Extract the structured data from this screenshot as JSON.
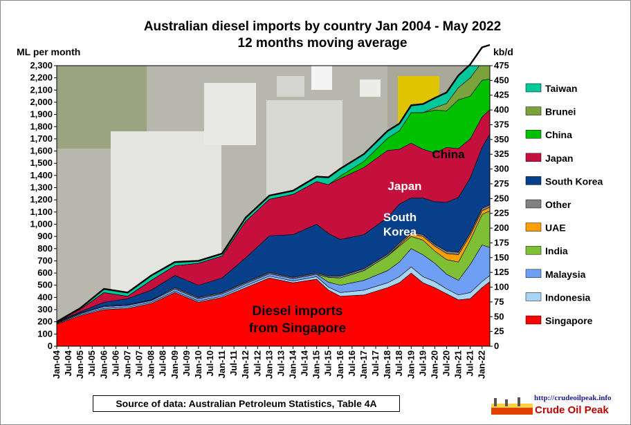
{
  "chart_data": {
    "type": "area",
    "title": "Australian diesel imports by country Jan 2004 - May 2022",
    "subtitle": "12 months moving average",
    "ylabel_left": "ML per month",
    "ylabel_right": "kb/d",
    "ylim": [
      0,
      2300
    ],
    "y2lim": [
      0,
      475
    ],
    "y_ticks": [
      "0",
      "100",
      "200",
      "300",
      "400",
      "500",
      "600",
      "700",
      "800",
      "900",
      "1,000",
      "1,100",
      "1,200",
      "1,300",
      "1,400",
      "1,500",
      "1,600",
      "1,700",
      "1,800",
      "1,900",
      "2,000",
      "2,100",
      "2,200",
      "2,300"
    ],
    "y2_ticks": [
      "0",
      "25",
      "50",
      "75",
      "100",
      "125",
      "150",
      "175",
      "200",
      "225",
      "250",
      "275",
      "300",
      "325",
      "350",
      "375",
      "400",
      "425",
      "450",
      "475"
    ],
    "x_ticks": [
      "Jan-04",
      "Jul-04",
      "Jan-05",
      "Jul-05",
      "Jan-06",
      "Jul-06",
      "Jan-07",
      "Jul-07",
      "Jan-08",
      "Jul-08",
      "Jan-09",
      "Jul-09",
      "Jan-10",
      "Jul-10",
      "Jan-11",
      "Jul-11",
      "Jan-12",
      "Jul-12",
      "Jan-13",
      "Jul-13",
      "Jan-14",
      "Jul-14",
      "Jan-15",
      "Jul-15",
      "Jan-16",
      "Jul-16",
      "Jan-17",
      "Jul-17",
      "Jan-18",
      "Jul-18",
      "Jan-19",
      "Jul-19",
      "Jan-20",
      "Jul-20",
      "Jan-21",
      "Jul-21",
      "Jan-22"
    ],
    "x_start": "2004-01",
    "x_end": "2022-05",
    "legend_position": "right",
    "x": [
      2004.0,
      2005.0,
      2006.0,
      2007.0,
      2008.0,
      2009.0,
      2010.0,
      2011.0,
      2012.0,
      2013.0,
      2014.0,
      2015.0,
      2015.5,
      2016.0,
      2017.0,
      2018.0,
      2018.5,
      2019.0,
      2019.5,
      2020.0,
      2020.5,
      2021.0,
      2021.5,
      2022.0,
      2022.33
    ],
    "series": [
      {
        "name": "Singapore",
        "color": "#ff0000",
        "values": [
          180,
          250,
          300,
          310,
          350,
          440,
          360,
          400,
          480,
          560,
          520,
          550,
          460,
          410,
          420,
          480,
          520,
          600,
          520,
          480,
          430,
          380,
          390,
          480,
          530
        ]
      },
      {
        "name": "Indonesia",
        "color": "#a8d4f4",
        "values": [
          5,
          8,
          10,
          10,
          10,
          10,
          10,
          10,
          15,
          15,
          15,
          20,
          25,
          30,
          40,
          40,
          50,
          50,
          50,
          50,
          40,
          40,
          50,
          50,
          50
        ]
      },
      {
        "name": "Malaysia",
        "color": "#6f9ff5",
        "values": [
          5,
          10,
          15,
          15,
          15,
          20,
          20,
          20,
          20,
          20,
          20,
          20,
          40,
          60,
          80,
          100,
          120,
          150,
          180,
          150,
          120,
          120,
          230,
          300,
          230
        ]
      },
      {
        "name": "India",
        "color": "#7fbf35",
        "values": [
          0,
          0,
          0,
          0,
          0,
          0,
          0,
          0,
          0,
          0,
          0,
          0,
          40,
          60,
          80,
          120,
          130,
          100,
          120,
          100,
          120,
          150,
          200,
          250,
          300
        ]
      },
      {
        "name": "UAE",
        "color": "#ffa000",
        "values": [
          0,
          0,
          0,
          0,
          0,
          0,
          0,
          0,
          0,
          0,
          0,
          0,
          0,
          0,
          0,
          0,
          10,
          20,
          30,
          40,
          50,
          60,
          40,
          30,
          30
        ]
      },
      {
        "name": "Other",
        "color": "#808080",
        "values": [
          5,
          5,
          5,
          5,
          5,
          10,
          10,
          10,
          10,
          10,
          10,
          10,
          10,
          15,
          15,
          15,
          15,
          15,
          15,
          15,
          20,
          20,
          20,
          20,
          20
        ]
      },
      {
        "name": "South Korea",
        "color": "#073f8a",
        "values": [
          5,
          10,
          30,
          50,
          80,
          100,
          100,
          120,
          200,
          300,
          350,
          400,
          350,
          300,
          280,
          300,
          320,
          280,
          300,
          350,
          400,
          450,
          450,
          500,
          580
        ]
      },
      {
        "name": "Japan",
        "color": "#c50f3c",
        "values": [
          0,
          20,
          80,
          20,
          80,
          80,
          180,
          180,
          300,
          300,
          330,
          350,
          400,
          500,
          550,
          550,
          450,
          450,
          400,
          400,
          450,
          400,
          320,
          250,
          200
        ]
      },
      {
        "name": "China",
        "color": "#00c000",
        "values": [
          0,
          0,
          0,
          0,
          0,
          0,
          0,
          0,
          0,
          0,
          0,
          0,
          0,
          20,
          50,
          100,
          150,
          250,
          300,
          350,
          300,
          400,
          350,
          300,
          250
        ]
      },
      {
        "name": "Brunei",
        "color": "#7aa33c",
        "values": [
          0,
          0,
          0,
          0,
          0,
          0,
          0,
          0,
          0,
          0,
          0,
          0,
          0,
          0,
          0,
          0,
          0,
          0,
          0,
          20,
          60,
          100,
          150,
          150,
          150
        ]
      },
      {
        "name": "Taiwan",
        "color": "#00c89a",
        "values": [
          0,
          10,
          30,
          30,
          40,
          30,
          20,
          20,
          30,
          30,
          30,
          40,
          60,
          60,
          60,
          60,
          60,
          60,
          70,
          80,
          90,
          100,
          110,
          120,
          130
        ]
      }
    ],
    "legend_order": [
      "Taiwan",
      "Brunei",
      "China",
      "Japan",
      "South Korea",
      "Other",
      "UAE",
      "India",
      "Malaysia",
      "Indonesia",
      "Singapore"
    ],
    "annotations": [
      {
        "text": "China",
        "color": "#000000"
      },
      {
        "text": "Japan",
        "color": "#ffffff"
      },
      {
        "text": "South",
        "color": "#ffffff"
      },
      {
        "text": "Korea",
        "color": "#ffffff"
      },
      {
        "text": "Diesel imports",
        "color": "#000000"
      },
      {
        "text": "from Singapore",
        "color": "#000000"
      }
    ]
  },
  "source_note": "Source of data: Australian Petroleum Statistics, Table 4A",
  "logo": {
    "url": "http://crudeoilpeak.info",
    "name": "Crude Oil Peak"
  }
}
